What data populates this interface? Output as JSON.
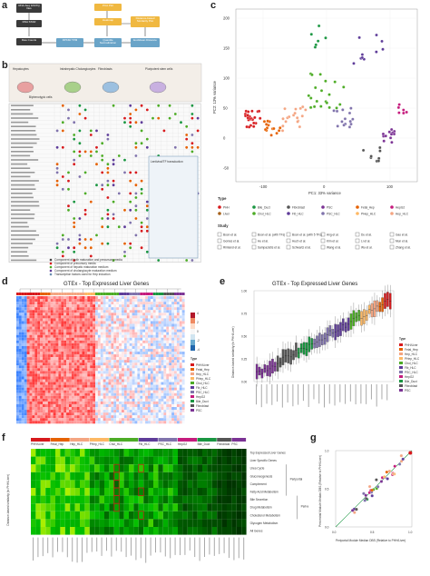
{
  "panels": {
    "a": {
      "label": "a",
      "flow": [
        {
          "text": "RNA-Seq FASTQ files",
          "color": "#3a3a3a"
        },
        {
          "text": "RNA STAR",
          "color": "#3a3a3a"
        },
        {
          "text": "Raw Counts",
          "color": "#3a3a3a"
        },
        {
          "text": "RPKM/ TPM",
          "color": "#6aa4c8"
        },
        {
          "text": "Quantile Normalization",
          "color": "#6aa4c8"
        },
        {
          "text": "Euclidean Distance",
          "color": "#6aa4c8"
        },
        {
          "text": "PCA Plot",
          "color": "#f0b840"
        },
        {
          "text": "Heatmap",
          "color": "#f0b840"
        },
        {
          "text": "Distance-based Similarity Plot",
          "color": "#f0b840"
        }
      ]
    },
    "b": {
      "label": "b",
      "cell_types": [
        "Hepatocytes",
        "Intrahepatic Cholangiocytes",
        "Fibroblasts",
        "Pluripotent stem cells"
      ],
      "sub_label": "Biphenotypic cells",
      "tf_box_title": "Lentiviral/TF transduction",
      "legend": [
        "Component of both maturation and precursory media",
        "Component of precursory media",
        "Component of hepatic maturation medium",
        "Component of cholangiocyte maturation medium",
        "Transcription factors used for Hep induction"
      ]
    },
    "c": {
      "label": "c",
      "xlabel": "PC1: 33% variance",
      "ylabel": "PC2: 13% variance",
      "type_title": "Type",
      "study_title": "Study",
      "types": [
        {
          "name": "PHH",
          "color": "#d7191c"
        },
        {
          "name": "Bile_Duct",
          "color": "#1a9641"
        },
        {
          "name": "Fibroblast",
          "color": "#555555"
        },
        {
          "name": "PSC",
          "color": "#7b3294"
        },
        {
          "name": "Fetal_Hep",
          "color": "#e66101"
        },
        {
          "name": "HepG2",
          "color": "#c51b7d"
        },
        {
          "name": "Liver",
          "color": "#a6611a"
        },
        {
          "name": "Chol_HLC",
          "color": "#4dac26"
        },
        {
          "name": "Fib_HLC",
          "color": "#5e3c99"
        },
        {
          "name": "PSC_HLC",
          "color": "#8073ac"
        },
        {
          "name": "PHep_HLC",
          "color": "#fdb863"
        },
        {
          "name": "Hep_HLC",
          "color": "#f4a582"
        }
      ],
      "studies": [
        "Boon et al.",
        "Boon et al. (with TFs)",
        "Boon et al. (with 5 TFs)",
        "Ang et al.",
        "Du et al.",
        "Gao et al.",
        "Gomes et al.",
        "Hu et al.",
        "Huch et al.",
        "Kim et al.",
        "Li et al.",
        "Mun et al.",
        "Rimland et al.",
        "Sampaziotis et al.",
        "Schwartz et al.",
        "Wang et al.",
        "Wu et al.",
        "Zhang et al."
      ],
      "axis": {
        "xticks": [
          "-100",
          "0",
          "100"
        ],
        "yticks": [
          "-50",
          "0",
          "50",
          "100",
          "150",
          "200"
        ]
      }
    },
    "d": {
      "label": "d",
      "title": "GTEx - Top Expressed Liver Genes",
      "type_title": "Type",
      "legend": [
        "PHH/Liver",
        "Fetal_Hep",
        "Hep_HLC",
        "PHep_HLC",
        "Chol_HLC",
        "Fib_HLC",
        "PSC_HLC",
        "HepG2",
        "Bile_Duct",
        "Fibroblast",
        "PSC"
      ],
      "scale_ticks": [
        "4",
        "2",
        "0",
        "-2",
        "-4"
      ]
    },
    "e": {
      "label": "e",
      "title": "GTEx - Top Expressed Liver Genes",
      "ylabel": "Distance-based similarity (to PHH/Liver)",
      "type_title": "Type",
      "yticks": [
        "1.00",
        "0.75",
        "0.50",
        "0.25",
        "0.00"
      ],
      "legend": [
        "PHH/Liver",
        "Fetal_Hep",
        "Hep_HLC",
        "PHep_HLC",
        "Chol_HLC",
        "Fib_HLC",
        "PSC_HLC",
        "HepG2",
        "Bile_Duct",
        "Fibroblast",
        "PSC"
      ]
    },
    "f": {
      "label": "f",
      "ylabel": "Distance-based similarity (to PHH/Liver)",
      "groups": [
        "PHH/Liver",
        "Fetal_Hep",
        "Hep_HLC",
        "PHep_HLC",
        "Chol_HLC",
        "Fib_HLC",
        "PSC_HLC",
        "HepG2",
        "Bile_Duct",
        "Fibroblast",
        "PSC"
      ],
      "rows": [
        "Top Expressed Liver Genes",
        "Liver Specific Genes",
        "Urea Cycle",
        "Gluconeogenesis",
        "Complement",
        "Fatty Acid Metabolism",
        "Bile Secretion",
        "Drug Metabolism",
        "Cholesterol Metabolism",
        "Glycogen Metabolism",
        "All Genes"
      ],
      "bracket_labels": [
        "Periportal",
        "Perivenous"
      ]
    },
    "g": {
      "label": "g",
      "xlabel": "Periportal Module Median DBS (Relative to PHH/Liver)",
      "ylabel": "Pericentral Module Median DBS (Relative to PHH/Liver)",
      "ticks": [
        "0.0",
        "0.5",
        "1.0"
      ]
    }
  },
  "colors": {
    "PHH": "#d7191c",
    "Fetal_Hep": "#e66101",
    "Hep_HLC": "#f4a582",
    "PHep_HLC": "#fdb863",
    "Chol_HLC": "#4dac26",
    "Fib_HLC": "#5e3c99",
    "PSC_HLC": "#8073ac",
    "HepG2": "#c51b7d",
    "Bile_Duct": "#1a9641",
    "Fibroblast": "#555555",
    "PSC": "#7b3294"
  }
}
